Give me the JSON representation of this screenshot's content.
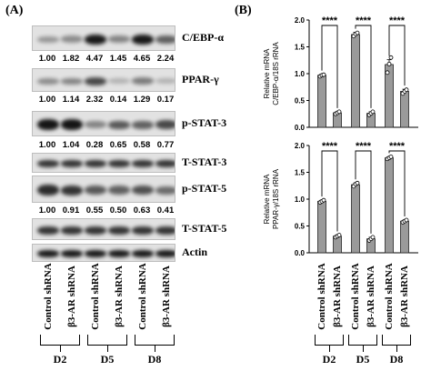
{
  "panel_a": {
    "label": "(A)",
    "blots": [
      {
        "protein": "C/EBP-α",
        "quant": [
          "1.00",
          "1.82",
          "4.47",
          "1.45",
          "4.65",
          "2.24"
        ]
      },
      {
        "protein": "PPAR-γ",
        "quant": [
          "1.00",
          "1.14",
          "2.32",
          "0.14",
          "1.29",
          "0.17"
        ]
      },
      {
        "protein": "p-STAT-3",
        "quant": [
          "1.00",
          "1.04",
          "0.28",
          "0.65",
          "0.58",
          "0.77"
        ]
      },
      {
        "protein": "T-STAT-3",
        "quant": []
      },
      {
        "protein": "p-STAT-5",
        "quant": [
          "1.00",
          "0.91",
          "0.55",
          "0.50",
          "0.63",
          "0.41"
        ]
      },
      {
        "protein": "T-STAT-5",
        "quant": []
      },
      {
        "protein": "Actin",
        "quant": []
      }
    ],
    "lanes": [
      "Control shRNA",
      "β3-AR shRNA",
      "Control shRNA",
      "β3-AR shRNA",
      "Control shRNA",
      "β3-AR shRNA"
    ],
    "days": [
      "D2",
      "D5",
      "D8"
    ]
  },
  "panel_b": {
    "label": "(B)",
    "lanes": [
      "Control shRNA",
      "β3-AR shRNA",
      "Control shRNA",
      "β3-AR shRNA",
      "Control shRNA",
      "β3-AR shRNA"
    ],
    "days": [
      "D2",
      "D5",
      "D8"
    ]
  },
  "chart_data": [
    {
      "type": "bar",
      "ylabel": "Relative mRNA C/EBP-α/18S rRNA",
      "ylabel_lines": [
        "Relative mRNA",
        "C/EBP-α/18S rRNA"
      ],
      "categories": [
        "Control shRNA",
        "β3-AR shRNA",
        "Control shRNA",
        "β3-AR shRNA",
        "Control shRNA",
        "β3-AR shRNA"
      ],
      "values": [
        0.97,
        0.27,
        1.73,
        0.26,
        1.17,
        0.67
      ],
      "errors": [
        0.02,
        0.02,
        0.04,
        0.03,
        0.09,
        0.04
      ],
      "points": [
        [
          0.95,
          0.97,
          0.98
        ],
        [
          0.25,
          0.27,
          0.29
        ],
        [
          1.7,
          1.74,
          1.76
        ],
        [
          0.23,
          0.26,
          0.29
        ],
        [
          1.02,
          1.18,
          1.3
        ],
        [
          0.63,
          0.67,
          0.7
        ]
      ],
      "ylim": [
        0.0,
        2.0
      ],
      "yticks": [
        "0.0",
        "0.5",
        "1.0",
        "1.5",
        "2.0"
      ],
      "significance": [
        "****",
        "****",
        "****"
      ]
    },
    {
      "type": "bar",
      "ylabel": "Relative mRNA PPAR-γ/18S rRNA",
      "ylabel_lines": [
        "Relative mRNA",
        "PPAR-γ/18S rRNA"
      ],
      "categories": [
        "Control shRNA",
        "β3-AR shRNA",
        "Control shRNA",
        "β3-AR shRNA",
        "Control shRNA",
        "β3-AR shRNA"
      ],
      "values": [
        0.96,
        0.31,
        1.27,
        0.26,
        1.77,
        0.59
      ],
      "errors": [
        0.02,
        0.02,
        0.03,
        0.03,
        0.02,
        0.02
      ],
      "points": [
        [
          0.94,
          0.96,
          0.98
        ],
        [
          0.29,
          0.31,
          0.33
        ],
        [
          1.24,
          1.28,
          1.3
        ],
        [
          0.23,
          0.26,
          0.29
        ],
        [
          1.75,
          1.77,
          1.79
        ],
        [
          0.57,
          0.59,
          0.61
        ]
      ],
      "ylim": [
        0.0,
        2.0
      ],
      "yticks": [
        "0.0",
        "0.5",
        "1.0",
        "1.5",
        "2.0"
      ],
      "significance": [
        "****",
        "****",
        "****"
      ]
    }
  ]
}
